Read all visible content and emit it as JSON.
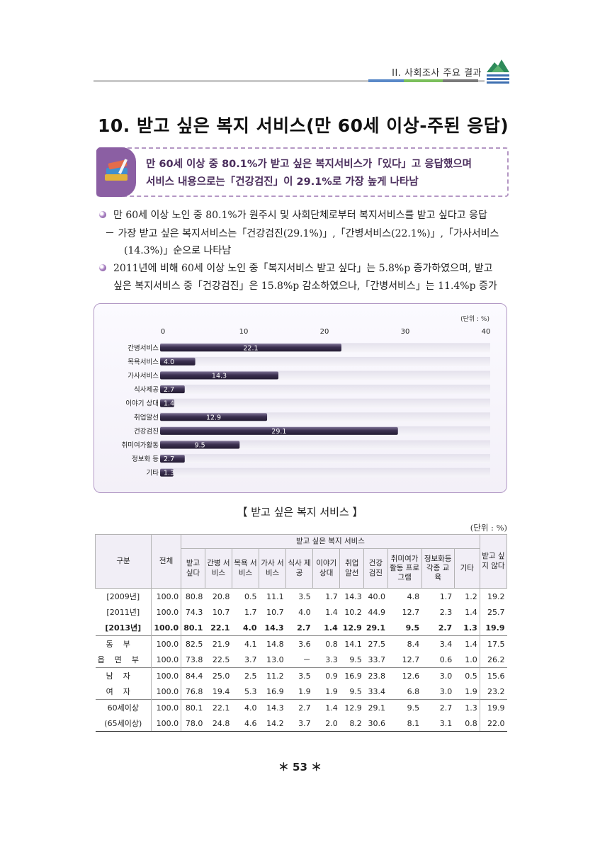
{
  "header": {
    "section": "II. 사회조사 주요 결과",
    "colors": {
      "stripe_blue": "#5a89c8",
      "stripe_green": "#7bbf5c",
      "stripe_gray": "#7a7a7a",
      "accent": "#8b5fa3"
    }
  },
  "title": "10. 받고 싶은 복지 서비스(만 60세 이상-주된 응답)",
  "summary": {
    "line1": "만 60세 이상 중 80.1%가 받고 싶은 복지서비스가「있다」고 응답했으며",
    "line2": "서비스 내용으로는「건강검진」이 29.1%로 가장 높게 나타남"
  },
  "body": {
    "p1": "만 60세 이상 노인 중 80.1%가 원주시 및 사회단체로부터 복지서비스를 받고 싶다고 응답",
    "p1_sub_line1": "－ 가장 받고 싶은 복지서비스는「건강검진(29.1%)」,「간병서비스(22.1%)」,「가사서비스",
    "p1_sub_line2": "(14.3%)」순으로 나타남",
    "p2_line1": "2011년에 비해 60세 이상 노인 중「복지서비스 받고 싶다」는 5.8%p 증가하였으며, 받고",
    "p2_line2": "싶은 복지서비스 중「건강검진」은 15.8%p 감소하였으나,「간병서비스」는 11.4%p 증가"
  },
  "chart_data": {
    "type": "bar",
    "orientation": "horizontal",
    "unit_label": "(단위 : %)",
    "categories": [
      "간병서비스",
      "목욕서비스",
      "가사서비스",
      "식사제공",
      "이야기 상대",
      "취업알선",
      "건강검진",
      "취미여가활동",
      "정보화 등",
      "기타"
    ],
    "values": [
      22.1,
      4.0,
      14.3,
      2.7,
      1.4,
      12.9,
      29.1,
      9.5,
      2.7,
      1.3
    ],
    "xlim": [
      0,
      40
    ],
    "x_ticks": [
      0,
      10,
      20,
      30,
      40
    ],
    "title": "",
    "xlabel": "",
    "ylabel": "",
    "legend": "none",
    "grid": false,
    "bar_color": "#3b3050"
  },
  "table": {
    "caption": "【 받고 싶은 복지 서비스 】",
    "unit": "(단위 : %)",
    "headers": {
      "group": "구분",
      "total": "전체",
      "want": "받고 싶다",
      "services_group": "받고 싶은 복지 서비스",
      "services": [
        "간병 서비스",
        "목욕 서비스",
        "가사 서비스",
        "식사 제공",
        "이야기 상대",
        "취업 알선",
        "건강 검진",
        "취미여가 활동 프로그램",
        "정보화등 각종 교육",
        "기타"
      ],
      "not_want": "받고 싶지 않다"
    },
    "rows": [
      {
        "label": "[2009년]",
        "cells": [
          "100.0",
          "80.8",
          "20.8",
          "0.5",
          "11.1",
          "3.5",
          "1.7",
          "14.3",
          "40.0",
          "4.8",
          "1.7",
          "1.2",
          "19.2"
        ]
      },
      {
        "label": "[2011년]",
        "cells": [
          "100.0",
          "74.3",
          "10.7",
          "1.7",
          "10.7",
          "4.0",
          "1.4",
          "10.2",
          "44.9",
          "12.7",
          "2.3",
          "1.4",
          "25.7"
        ]
      },
      {
        "label": "[2013년]",
        "cells": [
          "100.0",
          "80.1",
          "22.1",
          "4.0",
          "14.3",
          "2.7",
          "1.4",
          "12.9",
          "29.1",
          "9.5",
          "2.7",
          "1.3",
          "19.9"
        ]
      },
      {
        "label": "동부",
        "cells": [
          "100.0",
          "82.5",
          "21.9",
          "4.1",
          "14.8",
          "3.6",
          "0.8",
          "14.1",
          "27.5",
          "8.4",
          "3.4",
          "1.4",
          "17.5"
        ]
      },
      {
        "label": "읍면부",
        "cells": [
          "100.0",
          "73.8",
          "22.5",
          "3.7",
          "13.0",
          "－",
          "3.3",
          "9.5",
          "33.7",
          "12.7",
          "0.6",
          "1.0",
          "26.2"
        ]
      },
      {
        "label": "남자",
        "cells": [
          "100.0",
          "84.4",
          "25.0",
          "2.5",
          "11.2",
          "3.5",
          "0.9",
          "16.9",
          "23.8",
          "12.6",
          "3.0",
          "0.5",
          "15.6"
        ]
      },
      {
        "label": "여자",
        "cells": [
          "100.0",
          "76.8",
          "19.4",
          "5.3",
          "16.9",
          "1.9",
          "1.9",
          "9.5",
          "33.4",
          "6.8",
          "3.0",
          "1.9",
          "23.2"
        ]
      },
      {
        "label": "60세이상",
        "cells": [
          "100.0",
          "80.1",
          "22.1",
          "4.0",
          "14.3",
          "2.7",
          "1.4",
          "12.9",
          "29.1",
          "9.5",
          "2.7",
          "1.3",
          "19.9"
        ]
      },
      {
        "label": "(65세이상)",
        "cells": [
          "100.0",
          "78.0",
          "24.8",
          "4.6",
          "14.2",
          "3.7",
          "2.0",
          "8.2",
          "30.6",
          "8.1",
          "3.1",
          "0.8",
          "22.0"
        ]
      }
    ]
  },
  "page_number": "＊ 53 ＊"
}
